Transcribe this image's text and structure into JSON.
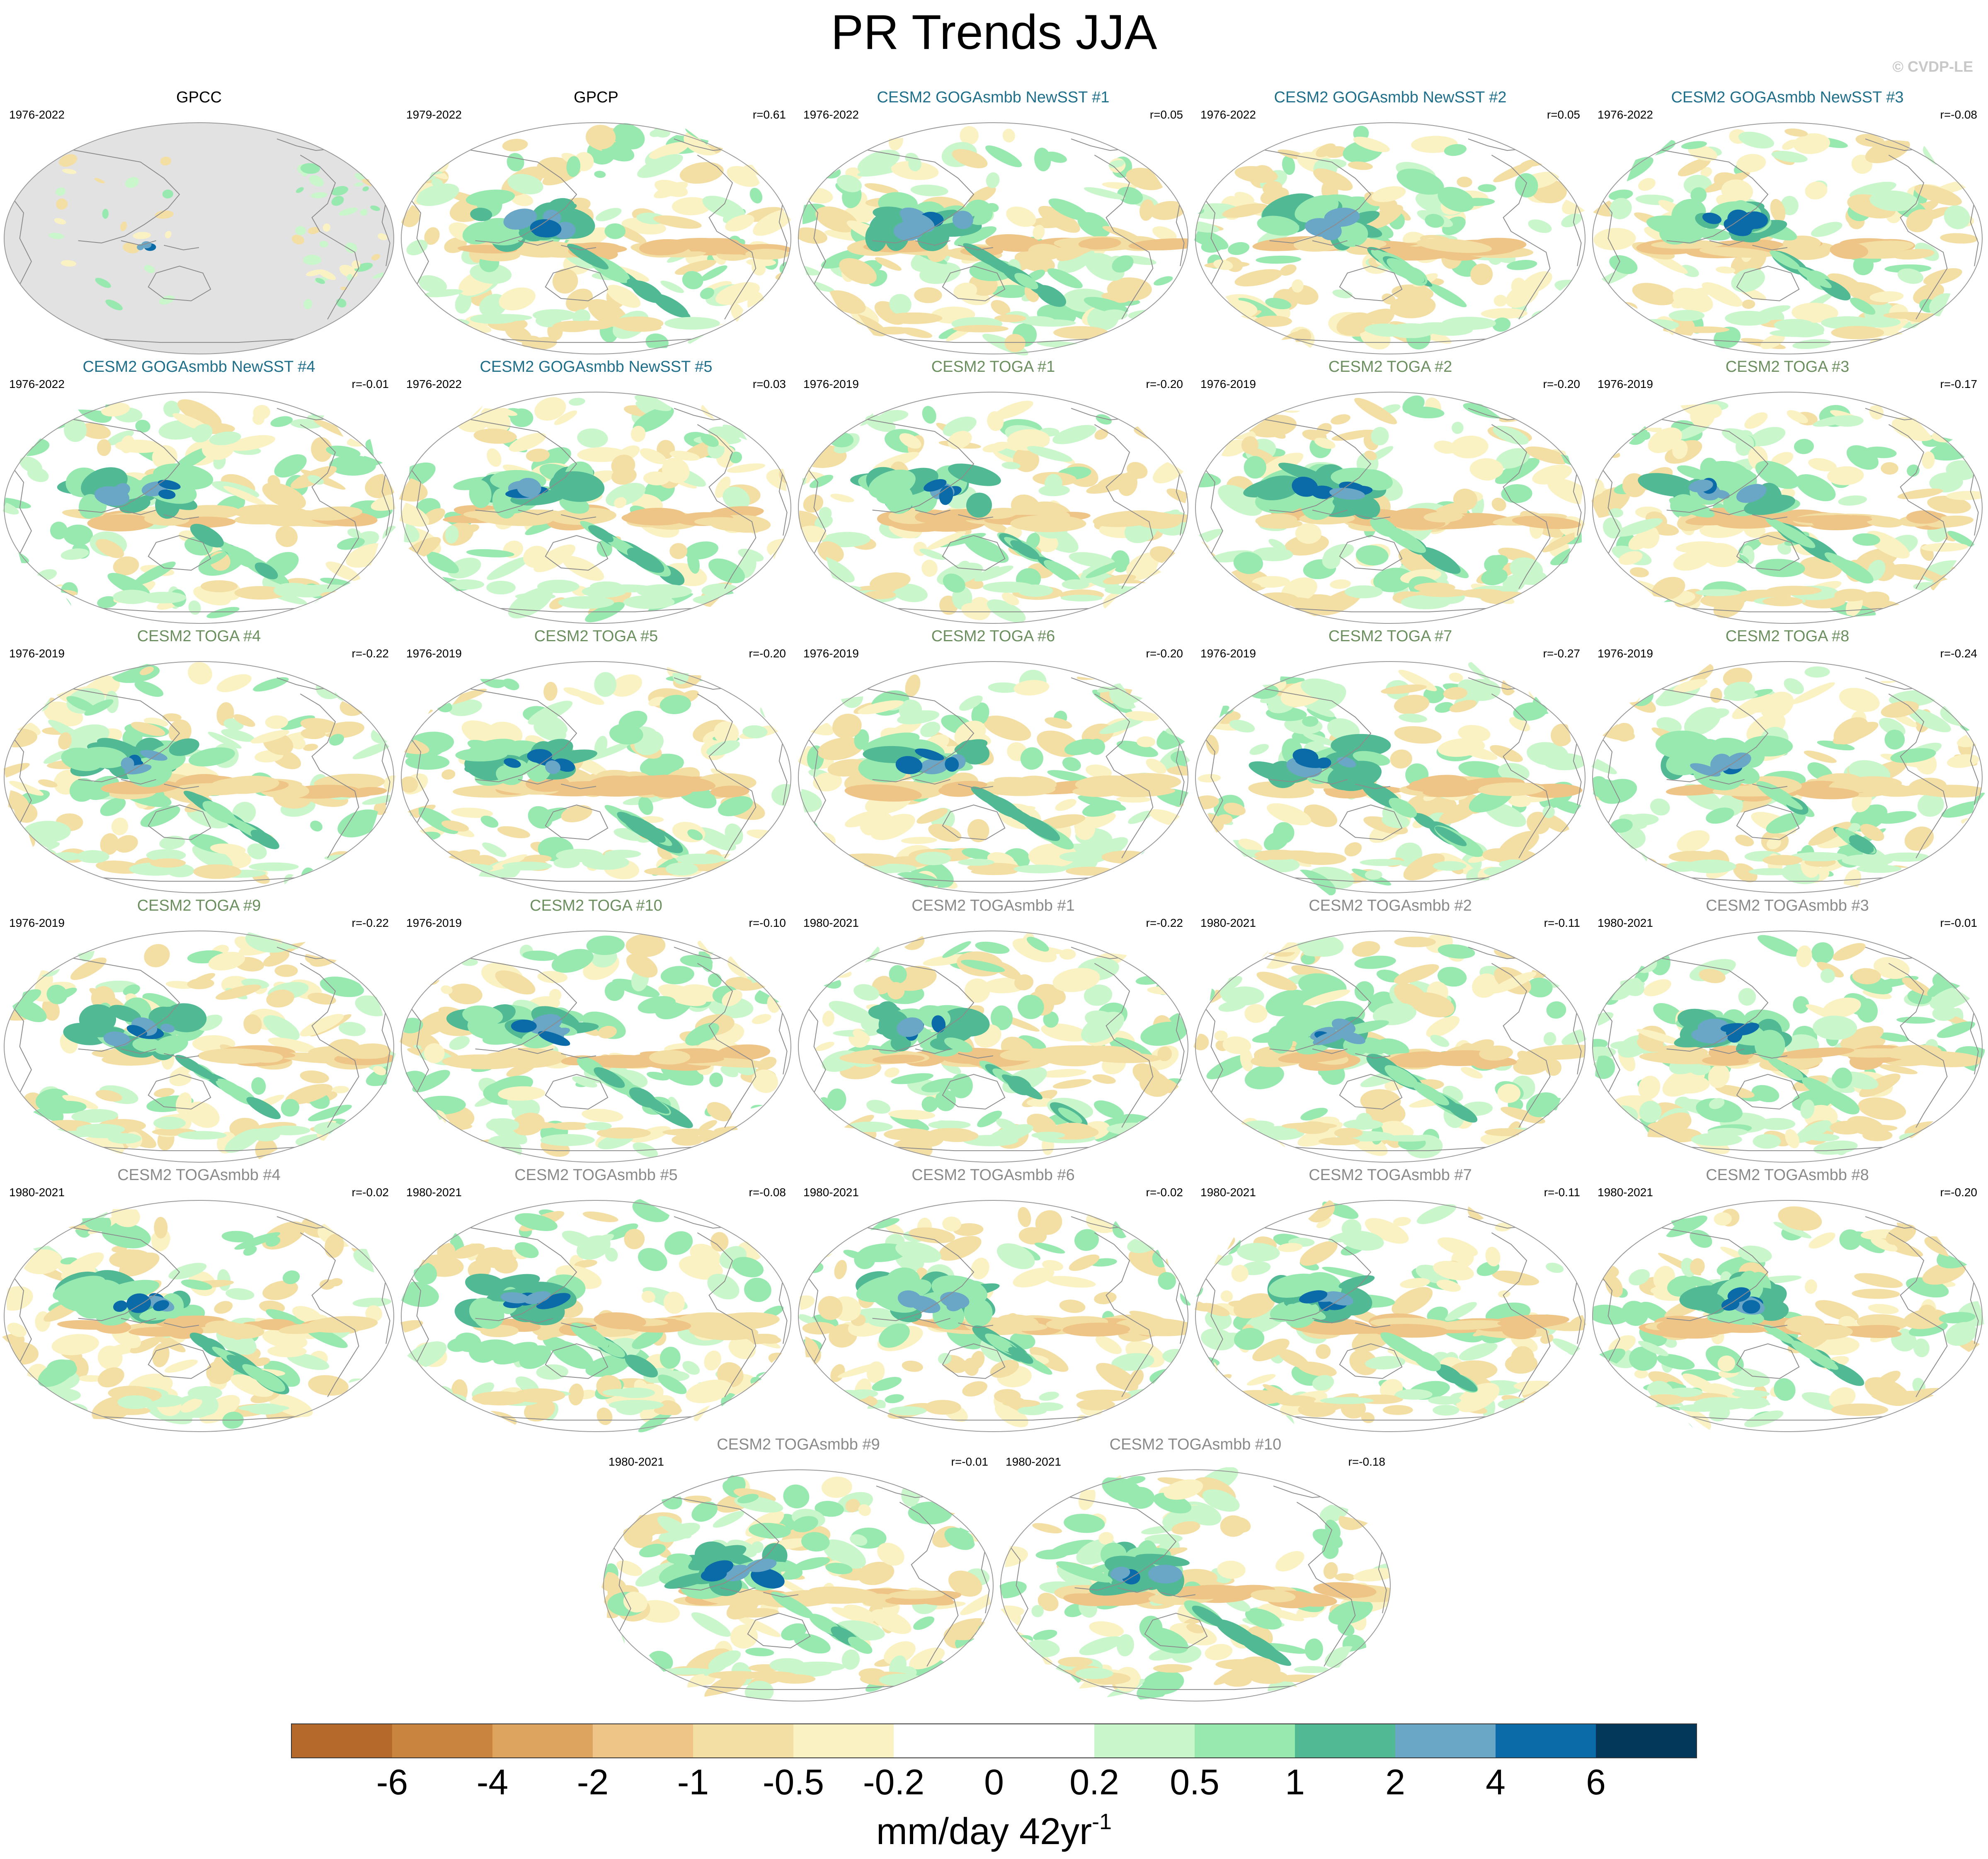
{
  "title": "PR Trends JJA",
  "credit": "© CVDP-LE",
  "panels": [
    {
      "title": "GPCC",
      "period": "1976-2022",
      "corr": "",
      "style": "black",
      "ocean_masked": true
    },
    {
      "title": "GPCP",
      "period": "1979-2022",
      "corr": "r=0.61",
      "style": "black"
    },
    {
      "title": "CESM2 GOGAsmbb NewSST #1",
      "period": "1976-2022",
      "corr": "r=0.05",
      "style": "blue"
    },
    {
      "title": "CESM2 GOGAsmbb NewSST #2",
      "period": "1976-2022",
      "corr": "r=0.05",
      "style": "blue"
    },
    {
      "title": "CESM2 GOGAsmbb NewSST #3",
      "period": "1976-2022",
      "corr": "r=-0.08",
      "style": "blue"
    },
    {
      "title": "CESM2 GOGAsmbb NewSST #4",
      "period": "1976-2022",
      "corr": "r=-0.01",
      "style": "blue"
    },
    {
      "title": "CESM2 GOGAsmbb NewSST #5",
      "period": "1976-2022",
      "corr": "r=0.03",
      "style": "blue"
    },
    {
      "title": "CESM2 TOGA #1",
      "period": "1976-2019",
      "corr": "r=-0.20",
      "style": "green"
    },
    {
      "title": "CESM2 TOGA #2",
      "period": "1976-2019",
      "corr": "r=-0.20",
      "style": "green"
    },
    {
      "title": "CESM2 TOGA #3",
      "period": "1976-2019",
      "corr": "r=-0.17",
      "style": "green"
    },
    {
      "title": "CESM2 TOGA #4",
      "period": "1976-2019",
      "corr": "r=-0.22",
      "style": "green"
    },
    {
      "title": "CESM2 TOGA #5",
      "period": "1976-2019",
      "corr": "r=-0.20",
      "style": "green"
    },
    {
      "title": "CESM2 TOGA #6",
      "period": "1976-2019",
      "corr": "r=-0.20",
      "style": "green"
    },
    {
      "title": "CESM2 TOGA #7",
      "period": "1976-2019",
      "corr": "r=-0.27",
      "style": "green"
    },
    {
      "title": "CESM2 TOGA #8",
      "period": "1976-2019",
      "corr": "r=-0.24",
      "style": "green"
    },
    {
      "title": "CESM2 TOGA #9",
      "period": "1976-2019",
      "corr": "r=-0.22",
      "style": "green"
    },
    {
      "title": "CESM2 TOGA #10",
      "period": "1976-2019",
      "corr": "r=-0.10",
      "style": "green"
    },
    {
      "title": "CESM2 TOGAsmbb #1",
      "period": "1980-2021",
      "corr": "r=-0.22",
      "style": "gray"
    },
    {
      "title": "CESM2 TOGAsmbb #2",
      "period": "1980-2021",
      "corr": "r=-0.11",
      "style": "gray"
    },
    {
      "title": "CESM2 TOGAsmbb #3",
      "period": "1980-2021",
      "corr": "r=-0.01",
      "style": "gray"
    },
    {
      "title": "CESM2 TOGAsmbb #4",
      "period": "1980-2021",
      "corr": "r=-0.02",
      "style": "gray"
    },
    {
      "title": "CESM2 TOGAsmbb #5",
      "period": "1980-2021",
      "corr": "r=-0.08",
      "style": "gray"
    },
    {
      "title": "CESM2 TOGAsmbb #6",
      "period": "1980-2021",
      "corr": "r=-0.02",
      "style": "gray"
    },
    {
      "title": "CESM2 TOGAsmbb #7",
      "period": "1980-2021",
      "corr": "r=-0.11",
      "style": "gray"
    },
    {
      "title": "CESM2 TOGAsmbb #8",
      "period": "1980-2021",
      "corr": "r=-0.20",
      "style": "gray"
    },
    {
      "title": "CESM2 TOGAsmbb #9",
      "period": "1980-2021",
      "corr": "r=-0.01",
      "style": "gray"
    },
    {
      "title": "CESM2 TOGAsmbb #10",
      "period": "1980-2021",
      "corr": "r=-0.18",
      "style": "gray"
    }
  ],
  "colorbar": {
    "colors": [
      "#b5692b",
      "#c98440",
      "#dca45f",
      "#eec587",
      "#f3dea3",
      "#fbf2c3",
      "#ffffff",
      "#ffffff",
      "#c9f6cb",
      "#97e9b0",
      "#52b995",
      "#6aa7c6",
      "#0b6aa8",
      "#04385a"
    ],
    "tick_labels": [
      "-6",
      "-4",
      "-2",
      "-1",
      "-0.5",
      "-0.2",
      "0",
      "0.2",
      "0.5",
      "1",
      "2",
      "4",
      "6"
    ],
    "unit": "mm/day 42yr",
    "unit_exponent": "-1"
  },
  "colors": {
    "title_black": "#000000",
    "title_blue": "#1f6f8b",
    "title_green": "#6b8f5e",
    "title_gray": "#8a8a8a",
    "land_mask": "#e2e2e2",
    "coastline": "#8c8c8c"
  }
}
